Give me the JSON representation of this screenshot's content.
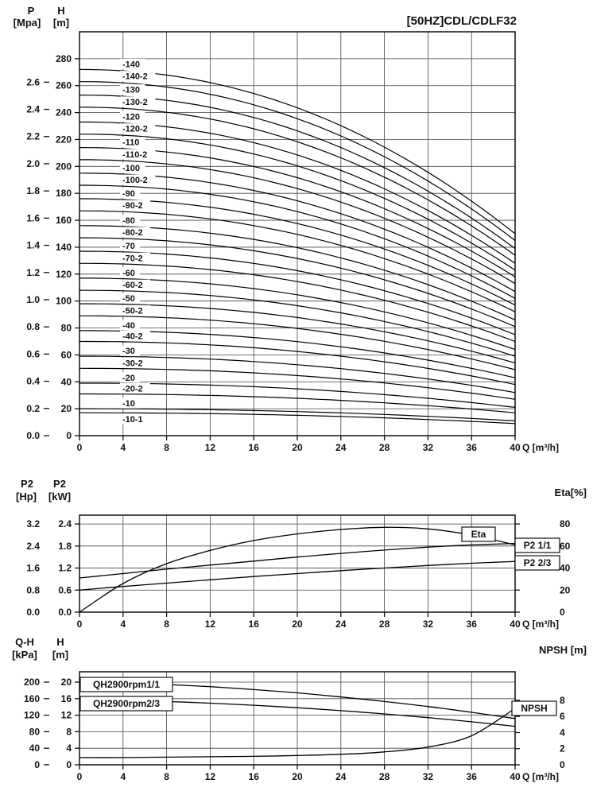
{
  "title": "[50HZ]CDL/CDLF32",
  "axis_headers": {
    "main_p": "P",
    "main_p_unit": "[Mpa]",
    "main_h": "H",
    "main_h_unit": "[m]",
    "power_hp": "P2",
    "power_hp_unit": "[Hp]",
    "power_kw": "P2",
    "power_kw_unit": "[kW]",
    "power_right": "Eta[%]",
    "stage_qh": "Q-H",
    "stage_qh_unit": "[kPa]",
    "stage_h": "H",
    "stage_h_unit": "[m]",
    "stage_right": "NPSH [m]"
  },
  "chart_data": [
    {
      "type": "line",
      "title": "[50HZ]CDL/CDLF32",
      "x": {
        "label": "Q [m³/h]",
        "range": [
          0,
          40
        ],
        "ticks": [
          0,
          4,
          8,
          12,
          16,
          20,
          24,
          28,
          32,
          36,
          40
        ]
      },
      "y_left": {
        "name": "H",
        "unit": "[m]",
        "range": [
          0,
          300
        ],
        "ticks": [
          0,
          20,
          40,
          60,
          80,
          100,
          120,
          140,
          160,
          180,
          200,
          220,
          240,
          260,
          280
        ]
      },
      "y_left_secondary": {
        "name": "P",
        "unit": "[Mpa]",
        "ticks": [
          0.0,
          0.2,
          0.4,
          0.6,
          0.8,
          1.0,
          1.2,
          1.4,
          1.6,
          1.8,
          2.0,
          2.2,
          2.4,
          2.6
        ],
        "m_per_unit": 101
      },
      "curve_shape_exponent": 2.1,
      "series": [
        {
          "label": "-140",
          "h_at_q0": 272,
          "h_at_q40": 150
        },
        {
          "label": "-140-2",
          "h_at_q0": 263,
          "h_at_q40": 145
        },
        {
          "label": "-130",
          "h_at_q0": 253,
          "h_at_q40": 139
        },
        {
          "label": "-130-2",
          "h_at_q0": 244,
          "h_at_q40": 134
        },
        {
          "label": "-120",
          "h_at_q0": 233,
          "h_at_q40": 128
        },
        {
          "label": "-120-2",
          "h_at_q0": 224,
          "h_at_q40": 123
        },
        {
          "label": "-110",
          "h_at_q0": 214,
          "h_at_q40": 118
        },
        {
          "label": "-110-2",
          "h_at_q0": 205,
          "h_at_q40": 113
        },
        {
          "label": "-100",
          "h_at_q0": 195,
          "h_at_q40": 107
        },
        {
          "label": "-100-2",
          "h_at_q0": 186,
          "h_at_q40": 102
        },
        {
          "label": "-90",
          "h_at_q0": 176,
          "h_at_q40": 97
        },
        {
          "label": "-90-2",
          "h_at_q0": 167,
          "h_at_q40": 92
        },
        {
          "label": "-80",
          "h_at_q0": 156,
          "h_at_q40": 86
        },
        {
          "label": "-80-2",
          "h_at_q0": 147,
          "h_at_q40": 81
        },
        {
          "label": "-70",
          "h_at_q0": 137,
          "h_at_q40": 75
        },
        {
          "label": "-70-2",
          "h_at_q0": 128,
          "h_at_q40": 70
        },
        {
          "label": "-60",
          "h_at_q0": 117,
          "h_at_q40": 64
        },
        {
          "label": "-60-2",
          "h_at_q0": 108,
          "h_at_q40": 59
        },
        {
          "label": "-50",
          "h_at_q0": 98,
          "h_at_q40": 54
        },
        {
          "label": "-50-2",
          "h_at_q0": 89,
          "h_at_q40": 49
        },
        {
          "label": "-40",
          "h_at_q0": 78,
          "h_at_q40": 43
        },
        {
          "label": "-40-2",
          "h_at_q0": 70,
          "h_at_q40": 38
        },
        {
          "label": "-30",
          "h_at_q0": 59,
          "h_at_q40": 32
        },
        {
          "label": "-30-2",
          "h_at_q0": 50,
          "h_at_q40": 27
        },
        {
          "label": "-20",
          "h_at_q0": 39,
          "h_at_q40": 21
        },
        {
          "label": "-20-2",
          "h_at_q0": 31,
          "h_at_q40": 17
        },
        {
          "label": "-10",
          "h_at_q0": 20,
          "h_at_q40": 11
        },
        {
          "label": "-10-1",
          "h_at_q0": 17,
          "h_at_q40": 9
        }
      ]
    },
    {
      "type": "line",
      "x": {
        "label": "Q [m³/h]",
        "range": [
          0,
          40
        ],
        "ticks": [
          0,
          4,
          8,
          12,
          16,
          20,
          24,
          28,
          32,
          36,
          40
        ]
      },
      "y_left": {
        "name": "P2",
        "unit": "[kW]",
        "range": [
          0,
          2.64
        ],
        "ticks": [
          0.0,
          0.6,
          1.2,
          1.8,
          2.4
        ]
      },
      "y_left_secondary": {
        "name": "P2",
        "unit": "[Hp]",
        "ticks": [
          0.0,
          0.8,
          1.6,
          2.4,
          3.2
        ]
      },
      "y_right": {
        "name": "Eta",
        "unit": "[%]",
        "ticks": [
          0,
          20,
          40,
          60,
          80
        ],
        "max_aligns_with_left_value": 2.4
      },
      "series": [
        {
          "label": "Eta",
          "axis": "right",
          "x": [
            0,
            4,
            8,
            12,
            16,
            20,
            24,
            28,
            32,
            36,
            40
          ],
          "values": [
            0,
            26,
            44,
            56,
            65,
            71,
            75,
            77,
            75.5,
            70,
            61
          ]
        },
        {
          "label": "P2 1/1",
          "axis": "left",
          "x": [
            0,
            4,
            8,
            12,
            16,
            20,
            24,
            28,
            32,
            36,
            40
          ],
          "values": [
            0.93,
            1.05,
            1.17,
            1.28,
            1.39,
            1.5,
            1.6,
            1.69,
            1.77,
            1.83,
            1.87
          ]
        },
        {
          "label": "P2 2/3",
          "axis": "left",
          "x": [
            0,
            4,
            8,
            12,
            16,
            20,
            24,
            28,
            32,
            36,
            40
          ],
          "values": [
            0.6,
            0.7,
            0.79,
            0.88,
            0.97,
            1.05,
            1.13,
            1.2,
            1.27,
            1.33,
            1.38
          ]
        }
      ]
    },
    {
      "type": "line",
      "x": {
        "label": "Q [m³/h]",
        "range": [
          0,
          40
        ],
        "ticks": [
          0,
          4,
          8,
          12,
          16,
          20,
          24,
          28,
          32,
          36,
          40
        ]
      },
      "y_left": {
        "name": "H",
        "unit": "[m]",
        "range": [
          0,
          22.5
        ],
        "ticks": [
          0,
          4,
          8,
          12,
          16,
          20
        ]
      },
      "y_left_secondary": {
        "name": "Q-H",
        "unit": "[kPa]",
        "ticks": [
          0,
          40,
          80,
          120,
          160,
          200
        ]
      },
      "y_right": {
        "name": "NPSH",
        "unit": "[m]",
        "ticks": [
          0,
          2,
          4,
          6,
          8
        ],
        "max_aligns_with_left_value": 15.6
      },
      "series": [
        {
          "label": "QH2900rpm1/1",
          "axis": "left",
          "x": [
            0,
            4,
            8,
            12,
            16,
            20,
            24,
            28,
            32,
            36,
            40
          ],
          "values": [
            20,
            19.8,
            19.4,
            18.9,
            18.2,
            17.4,
            16.4,
            15.3,
            14.1,
            12.7,
            11.2
          ]
        },
        {
          "label": "QH2900rpm2/3",
          "axis": "left",
          "x": [
            0,
            4,
            8,
            12,
            16,
            20,
            24,
            28,
            32,
            36,
            40
          ],
          "values": [
            15.8,
            15.6,
            15.3,
            14.9,
            14.4,
            13.8,
            13.1,
            12.3,
            11.4,
            10.4,
            9.3
          ]
        },
        {
          "label": "NPSH",
          "axis": "right",
          "x": [
            0,
            4,
            8,
            12,
            16,
            20,
            24,
            28,
            32,
            36,
            40
          ],
          "values": [
            0.9,
            0.9,
            0.95,
            1.0,
            1.05,
            1.15,
            1.3,
            1.6,
            2.2,
            3.6,
            7.0
          ]
        }
      ]
    }
  ]
}
